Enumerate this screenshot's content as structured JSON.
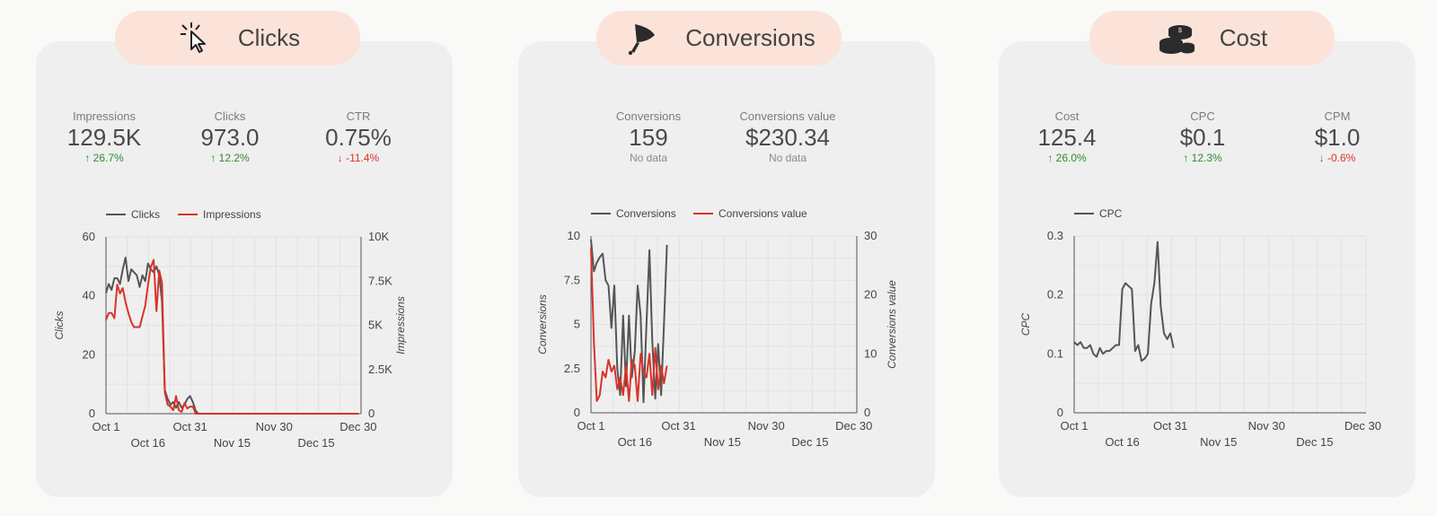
{
  "colors": {
    "series_dark": "#555555",
    "series_red": "#d9332a",
    "pill_bg": "#fbe3d9",
    "card_bg": "#efefef",
    "up": "#2e8b2e",
    "down": "#e0322a"
  },
  "panels": [
    {
      "title": "Clicks",
      "icon": "cursor-click-icon",
      "metrics": [
        {
          "label": "Impressions",
          "value": "129.5K",
          "change": "26.7%",
          "direction": "up"
        },
        {
          "label": "Clicks",
          "value": "973.0",
          "change": "12.2%",
          "direction": "up"
        },
        {
          "label": "CTR",
          "value": "0.75%",
          "change": "-11.4%",
          "direction": "down"
        }
      ]
    },
    {
      "title": "Conversions",
      "icon": "funnel-icon",
      "metrics": [
        {
          "label": "Conversions",
          "value": "159",
          "change": "No data",
          "direction": "none"
        },
        {
          "label": "Conversions value",
          "value": "$230.34",
          "change": "No data",
          "direction": "none"
        }
      ]
    },
    {
      "title": "Cost",
      "icon": "coins-icon",
      "metrics": [
        {
          "label": "Cost",
          "value": "125.4",
          "change": "26.0%",
          "direction": "up"
        },
        {
          "label": "CPC",
          "value": "$0.1",
          "change": "12.3%",
          "direction": "up"
        },
        {
          "label": "CPM",
          "value": "$1.0",
          "change": "-0.6%",
          "direction": "down"
        }
      ]
    }
  ],
  "chart_data": [
    {
      "type": "line",
      "x_ticks_top": [
        "Oct 1",
        "Oct 31",
        "Nov 30",
        "Dec 30"
      ],
      "x_ticks_bottom": [
        "Oct 16",
        "Nov 15",
        "Dec 15"
      ],
      "ylabel": "Clicks",
      "y2label": "Impressions",
      "ylim": [
        0,
        60
      ],
      "y2lim": [
        0,
        10000
      ],
      "y_ticks": [
        "0",
        "20",
        "40",
        "60"
      ],
      "y2_ticks": [
        "0",
        "2.5K",
        "5K",
        "7.5K",
        "10K"
      ],
      "series": [
        {
          "name": "Clicks",
          "axis": "left",
          "color": "#555555",
          "values": [
            41,
            44,
            42,
            46,
            46,
            44,
            49,
            53,
            45,
            49,
            48,
            47,
            43,
            47,
            45,
            51,
            49,
            48,
            50,
            47,
            38,
            8,
            5,
            3,
            4,
            2,
            4,
            2,
            3,
            5,
            6,
            4,
            1,
            0,
            0,
            0,
            0,
            0,
            0,
            0,
            0,
            0,
            0,
            0,
            0,
            0,
            0,
            0,
            0,
            0,
            0,
            0,
            0,
            0,
            0,
            0,
            0,
            0,
            0,
            0,
            0,
            0,
            0,
            0,
            0,
            0,
            0,
            0,
            0,
            0,
            0,
            0,
            0,
            0,
            0,
            0,
            0,
            0,
            0,
            0,
            0,
            0,
            0,
            0,
            0,
            0,
            0,
            0,
            0,
            0,
            0
          ]
        },
        {
          "name": "Impressions",
          "axis": "right",
          "color": "#d9332a",
          "values": [
            5300,
            5700,
            5700,
            5400,
            7300,
            6800,
            7100,
            6300,
            5700,
            5200,
            4900,
            4900,
            4900,
            5500,
            6100,
            7300,
            8300,
            8700,
            5800,
            8100,
            7400,
            1200,
            500,
            400,
            200,
            1000,
            200,
            100,
            600,
            300,
            400,
            400,
            0,
            0,
            0,
            0,
            0,
            0,
            0,
            0,
            0,
            0,
            0,
            0,
            0,
            0,
            0,
            0,
            0,
            0,
            0,
            0,
            0,
            0,
            0,
            0,
            0,
            0,
            0,
            0,
            0,
            0,
            0,
            0,
            0,
            0,
            0,
            0,
            0,
            0,
            0,
            0,
            0,
            0,
            0,
            0,
            0,
            0,
            0,
            0,
            0,
            0,
            0,
            0,
            0,
            0,
            0,
            0,
            0,
            0,
            0
          ]
        }
      ]
    },
    {
      "type": "line",
      "x_ticks_top": [
        "Oct 1",
        "Oct 31",
        "Nov 30",
        "Dec 30"
      ],
      "x_ticks_bottom": [
        "Oct 16",
        "Nov 15",
        "Dec 15"
      ],
      "ylabel": "Conversions",
      "y2label": "Conversions value",
      "ylim": [
        0,
        10
      ],
      "y2lim": [
        0,
        30
      ],
      "y_ticks": [
        "0",
        "2.5",
        "5",
        "7.5",
        "10"
      ],
      "y2_ticks": [
        "0",
        "10",
        "20",
        "30"
      ],
      "series": [
        {
          "name": "Conversions",
          "axis": "left",
          "color": "#555555",
          "values": [
            9.8,
            8,
            8.5,
            8.8,
            9,
            7.5,
            7.2,
            4.8,
            7.2,
            2.5,
            1,
            5.5,
            1.5,
            5.5,
            2,
            3.5,
            7.2,
            5.5,
            0.6,
            5,
            9.2,
            4,
            0.8,
            3.9,
            1,
            5,
            9.5
          ]
        },
        {
          "name": "Conversions value",
          "axis": "right",
          "color": "#d9332a",
          "values": [
            28,
            12,
            2,
            3,
            7,
            6,
            9,
            7,
            8,
            4,
            6,
            3,
            8,
            2,
            9,
            8,
            2,
            10,
            7,
            6,
            10,
            3,
            11,
            4,
            8,
            5,
            8
          ]
        }
      ]
    },
    {
      "type": "line",
      "x_ticks_top": [
        "Oct 1",
        "Oct 31",
        "Nov 30",
        "Dec 30"
      ],
      "x_ticks_bottom": [
        "Oct 16",
        "Nov 15",
        "Dec 15"
      ],
      "ylabel": "CPC",
      "ylim": [
        0,
        0.3
      ],
      "y_ticks": [
        "0",
        "0.1",
        "0.2",
        "0.3"
      ],
      "series": [
        {
          "name": "CPC",
          "axis": "left",
          "color": "#555555",
          "values": [
            0.12,
            0.115,
            0.12,
            0.11,
            0.11,
            0.115,
            0.1,
            0.095,
            0.11,
            0.1,
            0.105,
            0.105,
            0.11,
            0.115,
            0.115,
            0.21,
            0.22,
            0.215,
            0.21,
            0.105,
            0.115,
            0.088,
            0.092,
            0.1,
            0.185,
            0.22,
            0.29,
            0.18,
            0.135,
            0.125,
            0.135,
            0.11
          ]
        }
      ]
    }
  ]
}
